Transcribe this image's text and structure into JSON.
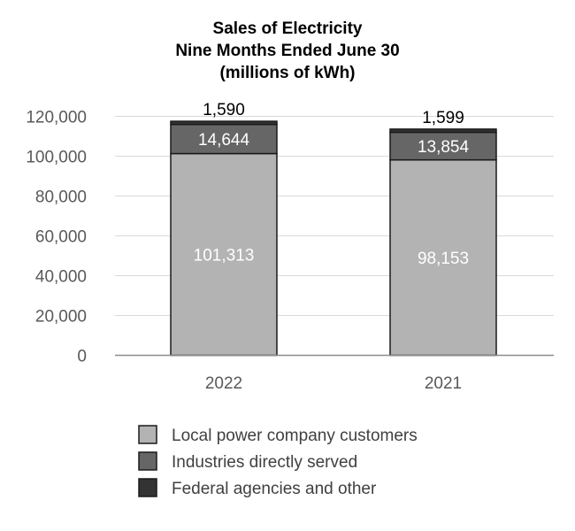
{
  "chart_data": {
    "type": "bar",
    "stacked": true,
    "title": [
      "Sales of Electricity",
      "Nine Months Ended June 30",
      "(millions of kWh)"
    ],
    "categories": [
      "2022",
      "2021"
    ],
    "series": [
      {
        "name": "Local power company customers",
        "values": [
          101313,
          98153
        ],
        "labels": [
          "101,313",
          "98,153"
        ],
        "color": "#b3b3b3"
      },
      {
        "name": "Industries directly served",
        "values": [
          14644,
          13854
        ],
        "labels": [
          "14,644",
          "13,854"
        ],
        "color": "#666666"
      },
      {
        "name": "Federal agencies and other",
        "values": [
          1590,
          1599
        ],
        "labels": [
          "1,590",
          "1,599"
        ],
        "color": "#333333"
      }
    ],
    "ylim": [
      0,
      120000
    ],
    "yticks": [
      0,
      20000,
      40000,
      60000,
      80000,
      100000,
      120000
    ],
    "ytick_labels": [
      "0",
      "20,000",
      "40,000",
      "60,000",
      "80,000",
      "100,000",
      "120,000"
    ],
    "xlabel": "",
    "ylabel": "",
    "grid": true,
    "legend_position": "bottom"
  }
}
